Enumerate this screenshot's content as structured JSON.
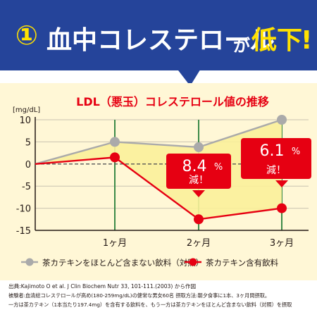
{
  "banner": {
    "number": "①",
    "text_main": "血中コレステロール",
    "text_particle": "が",
    "text_end": "低下",
    "text_mark": "!"
  },
  "chart_data": {
    "type": "line",
    "title": "LDL（悪玉）コレステロール値の推移",
    "ylabel": "[mg/dL]",
    "xlabel": "",
    "categories": [
      "",
      "1ヶ月",
      "2ヶ月",
      "3ヶ月"
    ],
    "ylim": [
      -15,
      10
    ],
    "yticks": [
      10,
      5,
      0,
      -5,
      -10,
      -15
    ],
    "grid": true,
    "legend_position": "bottom",
    "series": [
      {
        "name": "茶カテキンをほとんど含まない飲料（対照）",
        "color": "#aaaaaa",
        "values": [
          0,
          5,
          3.8,
          10
        ]
      },
      {
        "name": "茶カテキン含有飲料",
        "color": "#e60012",
        "values": [
          0,
          1.5,
          -12.5,
          -10
        ]
      }
    ],
    "annotations": [
      {
        "value": "8.4",
        "unit": "%",
        "label": "減！",
        "category_index": 2
      },
      {
        "value": "6.1",
        "unit": "%",
        "label": "減！",
        "category_index": 3
      }
    ],
    "colors": {
      "banner_bg": "#25449a",
      "chart_bg": "#fff7d6",
      "area_fill": "#fbf09a",
      "grid_v": "#3c8a48",
      "accent": "#e60012",
      "text_dark": "#231815",
      "title_color": "#e60012"
    }
  },
  "footnote": {
    "line1": "出典:Kajimoto O et al. J Clin Biochem Nutr 33, 101-111.(2003) から作図",
    "line2": "被験者:血清総コレステロールが高め(180-259mg/dL)の健常な男女60名  摂取方法:朝夕食事に1本、3ヶ月間摂取。",
    "line3": "一方は茶カテキン（1本当たり197.4mg）を含有する飲料を、もう一方は茶カテキンをほとんど含まない飲料（対照）を摂取"
  }
}
